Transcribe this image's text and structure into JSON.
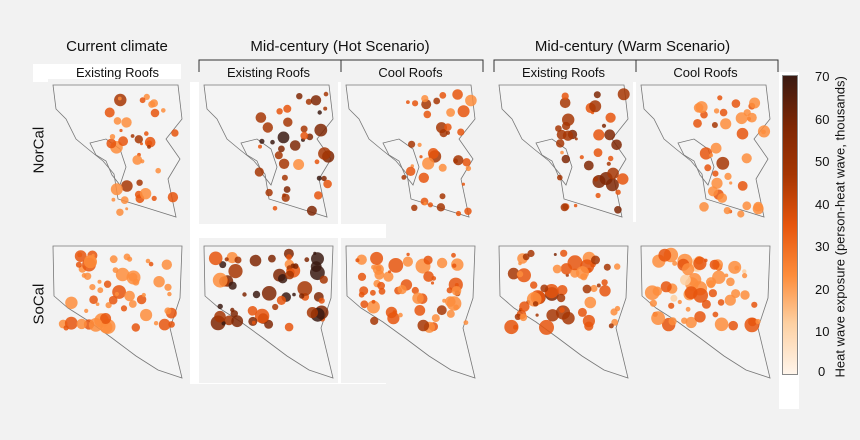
{
  "scenarios": [
    {
      "title": "Current climate"
    },
    {
      "title": "Mid-century (Hot Scenario)"
    },
    {
      "title": "Mid-century (Warm Scenario)"
    }
  ],
  "subtitles": [
    "Existing Roofs",
    "Existing Roofs",
    "Cool Roofs",
    "Existing Roofs",
    "Cool Roofs"
  ],
  "rows": [
    "NorCal",
    "SoCal"
  ],
  "colorbar": {
    "title": "Heat wave exposure (person-heat wave, thousands)",
    "ticks": [
      "70",
      "60",
      "50",
      "40",
      "30",
      "20",
      "10",
      "0"
    ],
    "colors": [
      "#fff5eb",
      "#fdd0a2",
      "#fd8d3c",
      "#e6550d",
      "#a63603",
      "#7f2704",
      "#3b1a12"
    ]
  },
  "chart_data": {
    "type": "heatmap",
    "panels": [
      {
        "row": "NorCal",
        "scenario": "Current climate",
        "roofs": "Existing Roofs",
        "intensity": 0.45
      },
      {
        "row": "NorCal",
        "scenario": "Mid-century (Hot Scenario)",
        "roofs": "Existing Roofs",
        "intensity": 0.75
      },
      {
        "row": "NorCal",
        "scenario": "Mid-century (Hot Scenario)",
        "roofs": "Cool Roofs",
        "intensity": 0.55
      },
      {
        "row": "NorCal",
        "scenario": "Mid-century (Warm Scenario)",
        "roofs": "Existing Roofs",
        "intensity": 0.65
      },
      {
        "row": "NorCal",
        "scenario": "Mid-century (Warm Scenario)",
        "roofs": "Cool Roofs",
        "intensity": 0.45
      },
      {
        "row": "SoCal",
        "scenario": "Current climate",
        "roofs": "Existing Roofs",
        "intensity": 0.4
      },
      {
        "row": "SoCal",
        "scenario": "Mid-century (Hot Scenario)",
        "roofs": "Existing Roofs",
        "intensity": 0.8
      },
      {
        "row": "SoCal",
        "scenario": "Mid-century (Hot Scenario)",
        "roofs": "Cool Roofs",
        "intensity": 0.45
      },
      {
        "row": "SoCal",
        "scenario": "Mid-century (Warm Scenario)",
        "roofs": "Existing Roofs",
        "intensity": 0.6
      },
      {
        "row": "SoCal",
        "scenario": "Mid-century (Warm Scenario)",
        "roofs": "Cool Roofs",
        "intensity": 0.35
      }
    ],
    "colorbar_range": [
      0,
      70
    ]
  }
}
